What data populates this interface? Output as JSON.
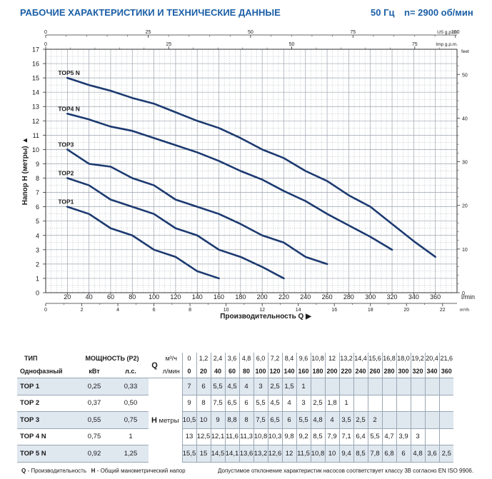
{
  "header": {
    "title": "РАБОЧИЕ ХАРАКТЕРИСТИКИ И ТЕХНИЧЕСКИЕ ДАННЫЕ",
    "freq": "50 Гц",
    "speed": "n= 2900 об/мин"
  },
  "chart_data": {
    "type": "line",
    "xlabel": "Производительность Q",
    "ylabel": "Напор H (метры)",
    "xunit": "l/min",
    "xlim": [
      0,
      380
    ],
    "ylim": [
      0,
      17
    ],
    "xticks": [
      20,
      40,
      60,
      80,
      100,
      120,
      140,
      160,
      180,
      200,
      220,
      240,
      260,
      280,
      300,
      320,
      340,
      360
    ],
    "yticks": [
      0,
      1,
      2,
      3,
      4,
      5,
      6,
      7,
      8,
      9,
      10,
      11,
      12,
      13,
      14,
      15,
      16,
      17
    ],
    "grid": true,
    "secondary_axes": {
      "us_gpm": {
        "label": "US g.p.m.",
        "ticks": [
          0,
          25,
          50,
          75,
          100
        ]
      },
      "imp_gpm": {
        "label": "Imp g.p.m.",
        "ticks": [
          0,
          25,
          50,
          75
        ]
      },
      "m3h": {
        "label": "m³/h",
        "ticks": [
          0,
          2,
          4,
          6,
          8,
          10,
          12,
          14,
          16,
          18,
          20,
          22
        ]
      },
      "feet": {
        "label": "feet",
        "ticks": [
          0,
          10,
          20,
          30,
          40,
          50
        ]
      }
    },
    "series": [
      {
        "name": "TOP1",
        "x": [
          20,
          40,
          60,
          80,
          100,
          120,
          140,
          160
        ],
        "y": [
          6,
          5.5,
          4.5,
          4,
          3,
          2.5,
          1.5,
          1
        ]
      },
      {
        "name": "TOP2",
        "x": [
          20,
          40,
          60,
          80,
          100,
          120,
          140,
          160,
          180,
          200,
          220
        ],
        "y": [
          8,
          7.5,
          6.5,
          6,
          5.5,
          4.5,
          4,
          3,
          2.5,
          1.8,
          1
        ]
      },
      {
        "name": "TOP3",
        "x": [
          20,
          40,
          60,
          80,
          100,
          120,
          140,
          160,
          180,
          200,
          220,
          240,
          260
        ],
        "y": [
          10,
          9,
          8.8,
          8,
          7.5,
          6.5,
          6,
          5.5,
          4.8,
          4,
          3.5,
          2.5,
          2
        ]
      },
      {
        "name": "TOP4 N",
        "x": [
          20,
          40,
          60,
          80,
          100,
          120,
          140,
          160,
          180,
          200,
          220,
          240,
          260,
          280,
          300,
          320
        ],
        "y": [
          12.5,
          12.1,
          11.6,
          11.3,
          10.8,
          10.3,
          9.8,
          9.2,
          8.5,
          7.9,
          7.1,
          6.4,
          5.5,
          4.7,
          3.9,
          3
        ]
      },
      {
        "name": "TOP5 N",
        "x": [
          20,
          40,
          60,
          80,
          100,
          120,
          140,
          160,
          180,
          200,
          220,
          240,
          260,
          280,
          300,
          320,
          340,
          360
        ],
        "y": [
          15,
          14.5,
          14.1,
          13.6,
          13.2,
          12.6,
          12,
          11.5,
          10.8,
          10,
          9.4,
          8.5,
          7.8,
          6.8,
          6,
          4.8,
          3.6,
          2.5
        ]
      }
    ]
  },
  "table": {
    "col_type": "ТИП",
    "col_power": "МОЩНОСТЬ (P2)",
    "col_q": "Q",
    "sub_type": "Однофазный",
    "unit_kw": "кВт",
    "unit_hp": "л.с.",
    "unit_m3h": "м³/ч",
    "unit_lmin": "л/мин",
    "h_label": "H",
    "h_unit": "метры",
    "q_m3h": [
      "0",
      "1,2",
      "2,4",
      "3,6",
      "4,8",
      "6,0",
      "7,2",
      "8,4",
      "9,6",
      "10,8",
      "12",
      "13,2",
      "14,4",
      "15,6",
      "16,8",
      "18,0",
      "19,2",
      "20,4",
      "21,6"
    ],
    "q_lmin": [
      "0",
      "20",
      "40",
      "60",
      "80",
      "100",
      "120",
      "140",
      "160",
      "180",
      "200",
      "220",
      "240",
      "260",
      "280",
      "300",
      "320",
      "340",
      "360"
    ],
    "rows": [
      {
        "name": "TOP 1",
        "kw": "0,25",
        "hp": "0,33",
        "h": [
          "7",
          "6",
          "5,5",
          "4,5",
          "4",
          "3",
          "2,5",
          "1,5",
          "1",
          "",
          "",
          "",
          "",
          "",
          "",
          "",
          "",
          "",
          ""
        ]
      },
      {
        "name": "TOP 2",
        "kw": "0,37",
        "hp": "0,50",
        "h": [
          "9",
          "8",
          "7,5",
          "6,5",
          "6",
          "5,5",
          "4,5",
          "4",
          "3",
          "2,5",
          "1,8",
          "1",
          "",
          "",
          "",
          "",
          "",
          "",
          ""
        ]
      },
      {
        "name": "TOP 3",
        "kw": "0,55",
        "hp": "0,75",
        "h": [
          "10,5",
          "10",
          "9",
          "8,8",
          "8",
          "7,5",
          "6,5",
          "6",
          "5,5",
          "4,8",
          "4",
          "3,5",
          "2,5",
          "2",
          "",
          "",
          "",
          "",
          ""
        ]
      },
      {
        "name": "TOP 4 N",
        "kw": "0,75",
        "hp": "1",
        "h": [
          "13",
          "12,5",
          "12,1",
          "11,6",
          "11,3",
          "10,8",
          "10,3",
          "9,8",
          "9,2",
          "8,5",
          "7,9",
          "7,1",
          "6,4",
          "5,5",
          "4,7",
          "3,9",
          "3",
          "",
          ""
        ]
      },
      {
        "name": "TOP 5 N",
        "kw": "0,92",
        "hp": "1,25",
        "h": [
          "15,5",
          "15",
          "14,5",
          "14,1",
          "13,6",
          "13,2",
          "12,6",
          "12",
          "11,5",
          "10,8",
          "10",
          "9,4",
          "8,5",
          "7,8",
          "6,8",
          "6",
          "4,8",
          "3,6",
          "2,5"
        ]
      }
    ]
  },
  "footer": {
    "legend_q": "Q",
    "legend_q_text": " - Производительность",
    "legend_h": "H",
    "legend_h_text": " - Общий манометрический напор",
    "tolerance": "Допустимое отклонение характеристик насосов соответствует классу 3B согласно EN ISO 9906."
  },
  "colors": {
    "curve": "#1c3a70",
    "title": "#1b5fa6",
    "grid": "#9aa3ad",
    "row_shade": "#dfe7ef"
  }
}
